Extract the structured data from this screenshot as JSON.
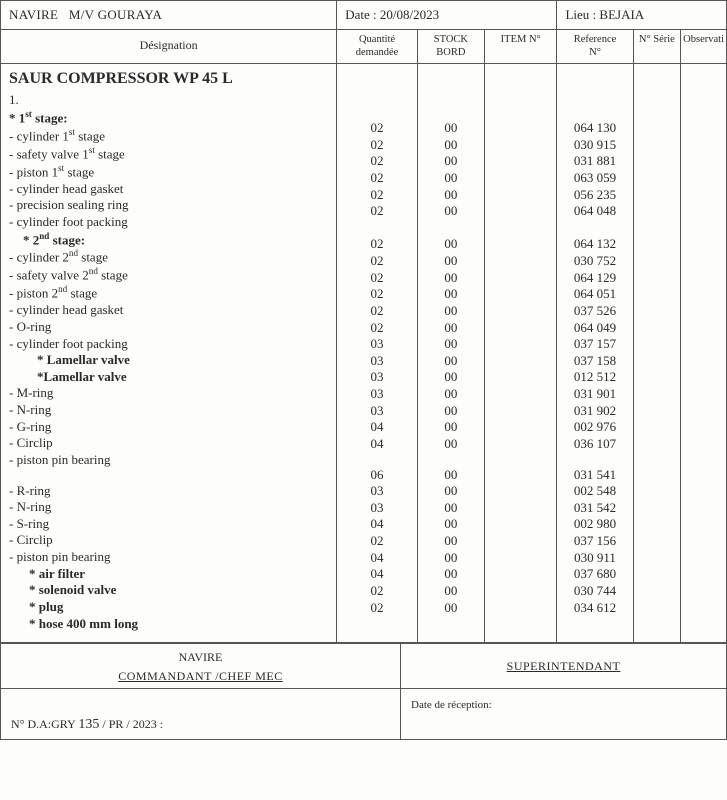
{
  "header": {
    "navire_label": "NAVIRE",
    "navire_value": "M/V GOURAYA",
    "date_label": "Date :",
    "date_value": "20/08/2023",
    "lieu_label": "Lieu :",
    "lieu_value": "BEJAIA"
  },
  "columns": {
    "designation": "Désignation",
    "qte1": "Quantité",
    "qte2": "demandée",
    "stock1": "STOCK",
    "stock2": "BORD",
    "item": "ITEM N°",
    "ref1": "Reference",
    "ref2": "N°",
    "serie": "N° Série",
    "obs": "Observati"
  },
  "section_title": "SAUR COMPRESSOR WP 45 L",
  "section_no": "1.",
  "stages": {
    "s1_prefix": "* 1",
    "s1_ord": "st",
    "s1_suffix": " stage:",
    "s2_prefix": "  * 2",
    "s2_ord": "nd",
    "s2_suffix": " stage:"
  },
  "rows": [
    {
      "d": "- cylinder 1<sup class='ord'>st</sup> stage",
      "q": "02",
      "s": "00",
      "r": "064 130"
    },
    {
      "d": "- safety valve 1<sup class='ord'>st</sup> stage",
      "q": "02",
      "s": "00",
      "r": "030 915"
    },
    {
      "d": "- piston 1<sup class='ord'>st</sup> stage",
      "q": "02",
      "s": "00",
      "r": "031 881"
    },
    {
      "d": "- cylinder head gasket",
      "q": "02",
      "s": "00",
      "r": "063 059"
    },
    {
      "d": "- precision sealing ring",
      "q": "02",
      "s": "00",
      "r": "056 235"
    },
    {
      "d": "- cylinder foot packing",
      "q": "02",
      "s": "00",
      "r": "064 048"
    },
    {
      "d": "stage2"
    },
    {
      "d": "- cylinder  2<sup class='ord'>nd</sup> stage",
      "q": "02",
      "s": "00",
      "r": "064 132"
    },
    {
      "d": "- safety valve 2<sup class='ord'>nd</sup> stage",
      "q": "02",
      "s": "00",
      "r": "030 752"
    },
    {
      "d": "- piston  2<sup class='ord'>nd</sup> stage",
      "q": "02",
      "s": "00",
      "r": "064 129"
    },
    {
      "d": "- cylinder head gasket",
      "q": "02",
      "s": "00",
      "r": "064 051"
    },
    {
      "d": "- O-ring",
      "q": "02",
      "s": "00",
      "r": "037 526"
    },
    {
      "d": "- cylinder foot packing",
      "q": "02",
      "s": "00",
      "r": "064 049"
    },
    {
      "d": "<b>* Lamellar valve</b>",
      "cls": "indent2",
      "q": "03",
      "s": "00",
      "r": "037 157"
    },
    {
      "d": "<b>*Lamellar valve</b>",
      "cls": "indent2",
      "q": "03",
      "s": "00",
      "r": "037 158"
    },
    {
      "d": "- M-ring",
      "q": "03",
      "s": "00",
      "r": "012 512"
    },
    {
      "d": "- N-ring",
      "q": "03",
      "s": "00",
      "r": "031 901"
    },
    {
      "d": "- G-ring",
      "q": "03",
      "s": "00",
      "r": "031 902"
    },
    {
      "d": "- Circlip",
      "q": "04",
      "s": "00",
      "r": "002 976"
    },
    {
      "d": "- piston pin bearing",
      "q": "04",
      "s": "00",
      "r": "036 107"
    },
    {
      "d": "spacer"
    },
    {
      "d": "- R-ring",
      "q": "06",
      "s": "00",
      "r": "031 541"
    },
    {
      "d": "- N-ring",
      "q": "03",
      "s": "00",
      "r": "002 548"
    },
    {
      "d": "- S-ring",
      "q": "03",
      "s": "00",
      "r": "031 542"
    },
    {
      "d": "- Circlip",
      "q": "04",
      "s": "00",
      "r": "002 980"
    },
    {
      "d": "- piston pin bearing",
      "q": "02",
      "s": "00",
      "r": "037 156"
    },
    {
      "d": "<b>* air filter</b>",
      "cls": "indent3",
      "q": "04",
      "s": "00",
      "r": "030 911"
    },
    {
      "d": "<b>* solenoid valve</b>",
      "cls": "indent3",
      "q": "04",
      "s": "00",
      "r": "037 680"
    },
    {
      "d": "<b>* plug</b>",
      "cls": "indent3",
      "q": "02",
      "s": "00",
      "r": "030 744"
    },
    {
      "d": "<b>* hose 400 mm long</b>",
      "cls": "indent3",
      "q": "02",
      "s": "00",
      "r": "034 612"
    }
  ],
  "footer": {
    "navire": "NAVIRE",
    "cmdt": "COMMANDANT /CHEF MEC",
    "super": "SUPERINTENDANT",
    "reception": "Date de réception:",
    "refno_prefix": "N° D.A:GRY ",
    "refno_hand": "135",
    "refno_suffix": " / PR   / 2023 :"
  }
}
